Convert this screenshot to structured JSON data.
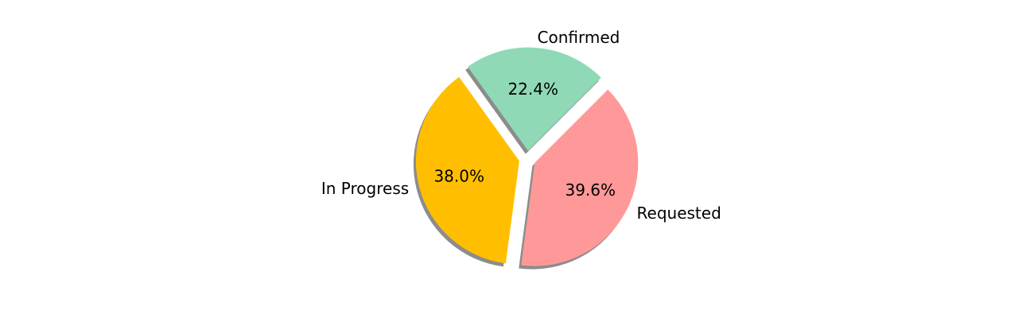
{
  "chart_data": {
    "type": "pie",
    "title": "",
    "slices": [
      {
        "label": "Confirmed",
        "value": 22.4,
        "pct_label": "22.4%",
        "color": "#8fd9b6",
        "exploded": true
      },
      {
        "label": "In Progress",
        "value": 38.0,
        "pct_label": "38.0%",
        "color": "#ffbf00",
        "exploded": true
      },
      {
        "label": "Requested",
        "value": 39.6,
        "pct_label": "39.6%",
        "color": "#ff9999",
        "exploded": true
      }
    ],
    "shadow": true,
    "legend": "none"
  }
}
